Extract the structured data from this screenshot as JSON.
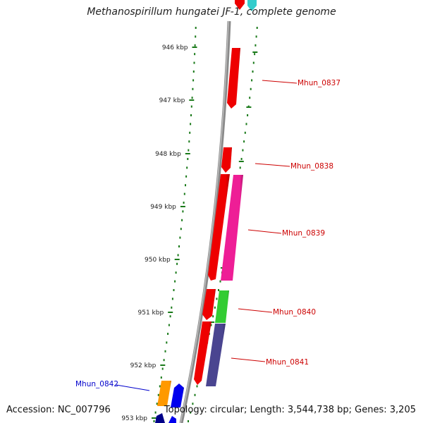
{
  "title": "Methanospirillum hungatei JF-1, complete genome",
  "accession_text": "Accession: NC_007796",
  "topology_text": "Topology: circular; Length: 3,544,738 bp; Genes: 3,205",
  "ticks": [
    {
      "label": "946 kbp"
    },
    {
      "label": "947 kbp"
    },
    {
      "label": "948 kbp"
    },
    {
      "label": "949 kbp"
    },
    {
      "label": "950 kbp"
    },
    {
      "label": "951 kbp"
    },
    {
      "label": "952 kbp"
    },
    {
      "label": "953 kbp"
    }
  ],
  "gene_labels": [
    {
      "text": "Mhun_0837",
      "color": "#cc0000"
    },
    {
      "text": "Mhun_0838",
      "color": "#cc0000"
    },
    {
      "text": "Mhun_0839",
      "color": "#cc0000"
    },
    {
      "text": "Mhun_0840",
      "color": "#cc0000"
    },
    {
      "text": "Mhun_0841",
      "color": "#cc0000"
    },
    {
      "text": "Mhun_0842",
      "color": "#0000cc"
    }
  ],
  "colors": {
    "backbone": "#8a8a8a",
    "dots": "#1a7a1a",
    "red": "#ee0000",
    "magenta": "#ee1e96",
    "green": "#33cc33",
    "purple": "#4a4590",
    "orange": "#ff9900",
    "blue": "#0000ee",
    "cyan": "#33cccc"
  }
}
